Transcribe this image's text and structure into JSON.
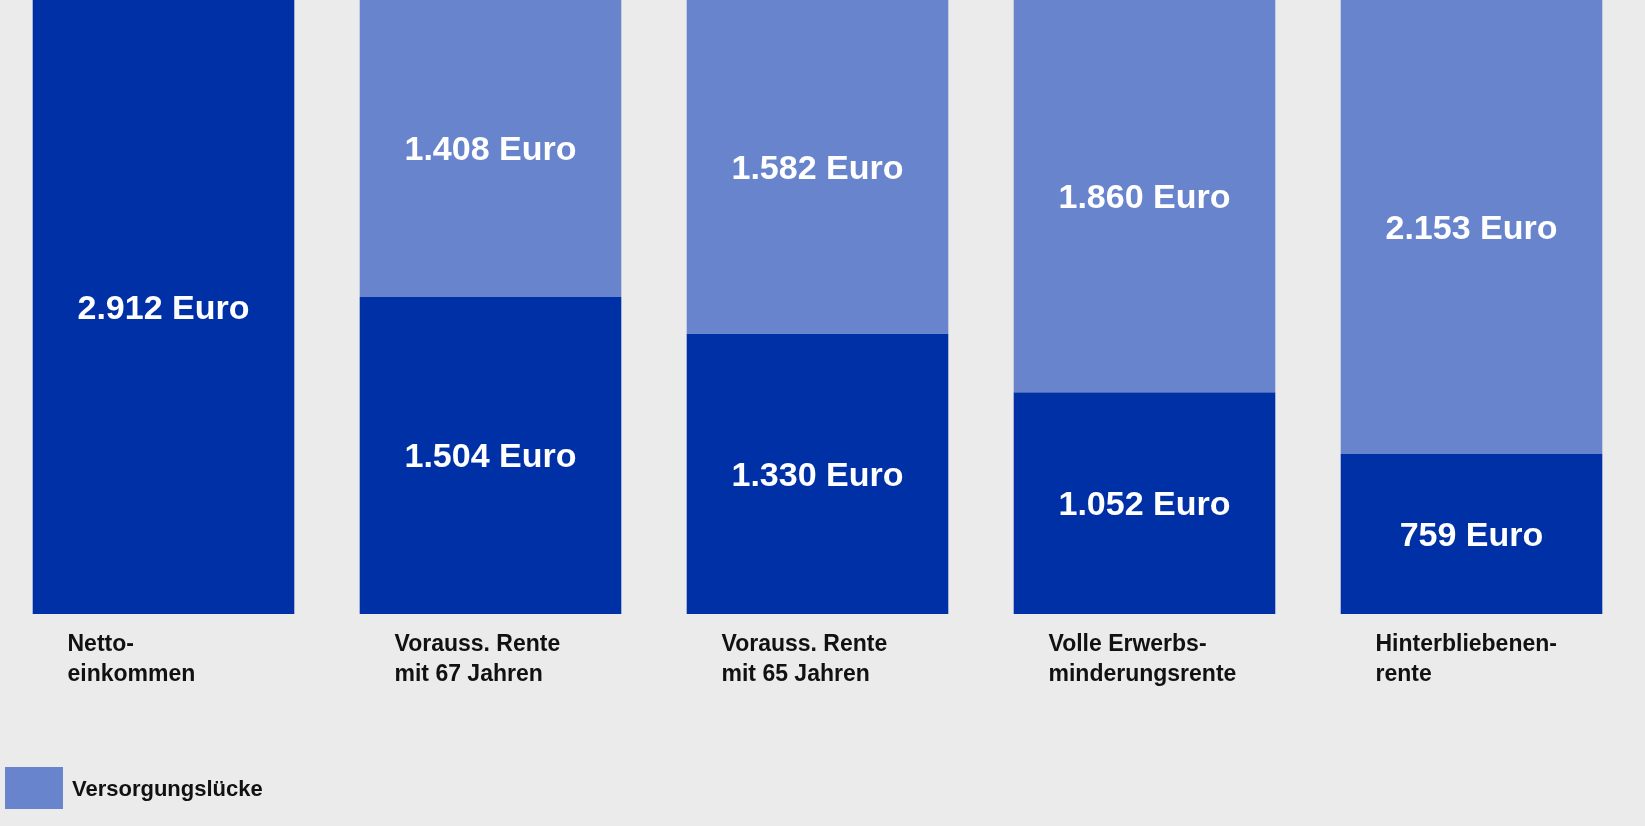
{
  "chart_data": {
    "type": "bar",
    "stacked": true,
    "categories": [
      "Netto-\neinkommen",
      "Vorauss. Rente\nmit 67 Jahren",
      "Vorauss. Rente\nmit 65 Jahren",
      "Volle Erwerbs-\nminderungsrente",
      "Hinterbliebenen-\nrente"
    ],
    "series": [
      {
        "color": "#0030a5",
        "values": [
          2912,
          1504,
          1330,
          1052,
          759
        ],
        "value_labels": [
          "2.912 Euro",
          "1.504 Euro",
          "1.330 Euro",
          "1.052 Euro",
          "759 Euro"
        ]
      },
      {
        "name": "Versorgungslücke",
        "color": "#6884cc",
        "values": [
          null,
          1408,
          1582,
          1860,
          2153
        ],
        "value_labels": [
          null,
          "1.408 Euro",
          "1.582 Euro",
          "1.860 Euro",
          "2.153 Euro"
        ]
      }
    ],
    "legend": "bottom left",
    "grid": false
  }
}
